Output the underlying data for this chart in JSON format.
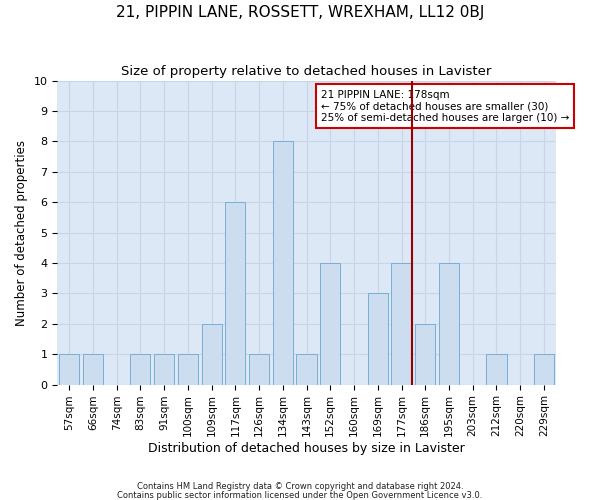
{
  "title": "21, PIPPIN LANE, ROSSETT, WREXHAM, LL12 0BJ",
  "subtitle": "Size of property relative to detached houses in Lavister",
  "xlabel": "Distribution of detached houses by size in Lavister",
  "ylabel": "Number of detached properties",
  "categories": [
    "57sqm",
    "66sqm",
    "74sqm",
    "83sqm",
    "91sqm",
    "100sqm",
    "109sqm",
    "117sqm",
    "126sqm",
    "134sqm",
    "143sqm",
    "152sqm",
    "160sqm",
    "169sqm",
    "177sqm",
    "186sqm",
    "195sqm",
    "203sqm",
    "212sqm",
    "220sqm",
    "229sqm"
  ],
  "values": [
    1,
    1,
    0,
    1,
    1,
    1,
    2,
    6,
    1,
    8,
    1,
    4,
    0,
    3,
    4,
    2,
    4,
    0,
    1,
    0,
    1
  ],
  "bar_color": "#ccddf0",
  "bar_edge_color": "#7aaed4",
  "vline_x": 14.45,
  "vline_color": "#990000",
  "annotation_text": "21 PIPPIN LANE: 178sqm\n← 75% of detached houses are smaller (30)\n25% of semi-detached houses are larger (10) →",
  "annotation_box_color": "#ffffff",
  "annotation_box_edge": "#cc0000",
  "ylim": [
    0,
    10
  ],
  "yticks": [
    0,
    1,
    2,
    3,
    4,
    5,
    6,
    7,
    8,
    9,
    10
  ],
  "grid_color": "#c8d4e8",
  "bg_color": "#dce8f5",
  "title_fontsize": 11,
  "subtitle_fontsize": 9.5,
  "xlabel_fontsize": 9,
  "ylabel_fontsize": 8.5,
  "tick_fontsize": 8,
  "footer1": "Contains HM Land Registry data © Crown copyright and database right 2024.",
  "footer2": "Contains public sector information licensed under the Open Government Licence v3.0."
}
